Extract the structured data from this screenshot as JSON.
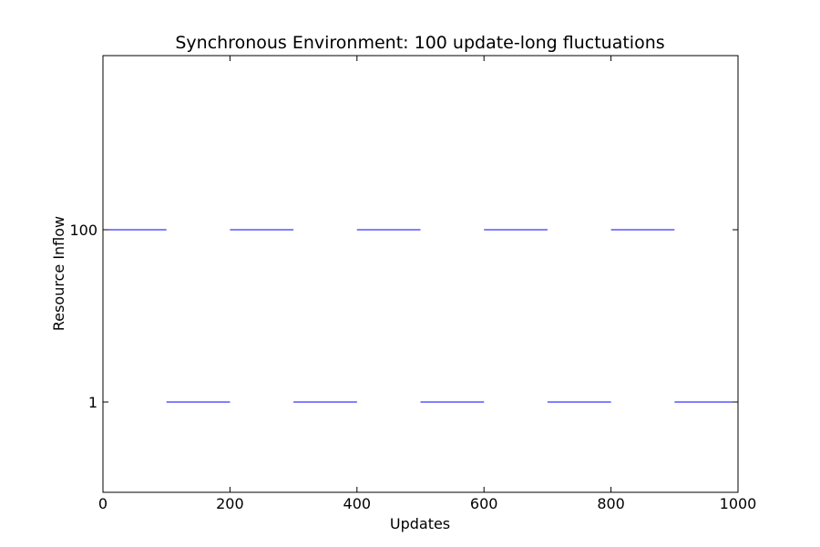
{
  "chart_data": {
    "type": "line",
    "title": "Synchronous Environment: 100 update-long fluctuations",
    "xlabel": "Updates",
    "ylabel": "Resource Inflow",
    "xlim": [
      0,
      1000
    ],
    "yscale": "categorical-levels",
    "y_levels": [
      "1",
      "100"
    ],
    "x_ticks": [
      0,
      200,
      400,
      600,
      800,
      1000
    ],
    "x_tick_labels": [
      "0",
      "200",
      "400",
      "600",
      "800",
      "1000"
    ],
    "y_tick_labels": [
      "1",
      "100"
    ],
    "grid": false,
    "legend": "none",
    "series": [
      {
        "name": "Resource Inflow",
        "color": "#0000ff",
        "segments": [
          {
            "x0": 0,
            "x1": 100,
            "level": "100"
          },
          {
            "x0": 100,
            "x1": 200,
            "level": "1"
          },
          {
            "x0": 200,
            "x1": 300,
            "level": "100"
          },
          {
            "x0": 300,
            "x1": 400,
            "level": "1"
          },
          {
            "x0": 400,
            "x1": 500,
            "level": "100"
          },
          {
            "x0": 500,
            "x1": 600,
            "level": "1"
          },
          {
            "x0": 600,
            "x1": 700,
            "level": "100"
          },
          {
            "x0": 700,
            "x1": 800,
            "level": "1"
          },
          {
            "x0": 800,
            "x1": 900,
            "level": "100"
          },
          {
            "x0": 900,
            "x1": 1000,
            "level": "1"
          }
        ]
      }
    ]
  }
}
